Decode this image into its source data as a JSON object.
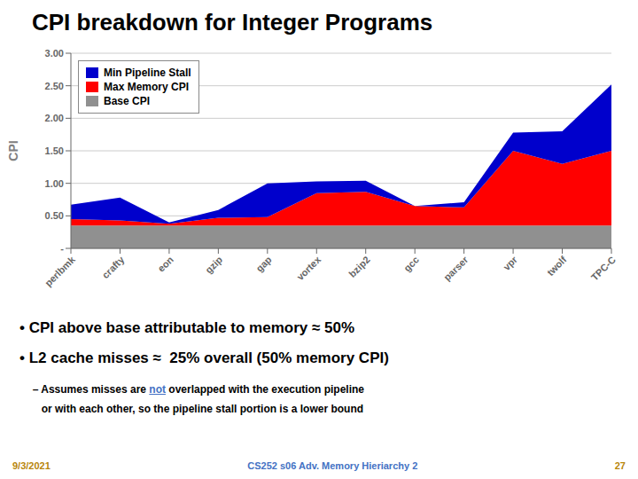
{
  "chart_data": {
    "type": "area",
    "stacked": true,
    "title": "CPI breakdown for Integer Programs",
    "ylabel": "CPI",
    "categories": [
      "perlbmk",
      "crafty",
      "eon",
      "gzip",
      "gap",
      "vortex",
      "bzip2",
      "gcc",
      "parser",
      "vpr",
      "twolf",
      "TPC-C"
    ],
    "series": [
      {
        "name": "Base CPI",
        "color": "#909090",
        "values": [
          0.35,
          0.35,
          0.35,
          0.35,
          0.35,
          0.35,
          0.35,
          0.35,
          0.35,
          0.35,
          0.35,
          0.35
        ]
      },
      {
        "name": "Max Memory CPI",
        "color": "#FF0000",
        "values": [
          0.1,
          0.08,
          0.03,
          0.12,
          0.13,
          0.5,
          0.52,
          0.3,
          0.28,
          1.15,
          0.95,
          1.15
        ]
      },
      {
        "name": "Min Pipeline Stall",
        "color": "#0000CC",
        "values": [
          0.22,
          0.35,
          0.02,
          0.12,
          0.52,
          0.18,
          0.17,
          0.0,
          0.08,
          0.28,
          0.5,
          1.02
        ]
      }
    ],
    "ylim": [
      0,
      3.0
    ],
    "yticks": [
      {
        "value": 0.0,
        "label": "-"
      },
      {
        "value": 0.5,
        "label": "0.50"
      },
      {
        "value": 1.0,
        "label": "1.00"
      },
      {
        "value": 1.5,
        "label": "1.50"
      },
      {
        "value": 2.0,
        "label": "2.00"
      },
      {
        "value": 2.5,
        "label": "2.50"
      },
      {
        "value": 3.0,
        "label": "3.00"
      }
    ],
    "grid": true,
    "legend": "upper left",
    "annotations": [
      {
        "text": "• CPI above base attributable to memory ≈ 50%"
      },
      {
        "text": "• L2 cache misses ≈  25% overall (50% memory CPI)"
      },
      {
        "parts": [
          {
            "text": "  – Assumes misses are "
          },
          {
            "text": "not",
            "color": "#4472C4"
          },
          {
            "text": " overlapped with the execution pipeline"
          }
        ]
      },
      {
        "text": "     or with each other, so the pipeline stall portion is a lower bound"
      },
      {
        "text": "9/3/2021",
        "color": "#B8860B"
      },
      {
        "text": "CS252 s06 Adv. Memory Hieriarchy 2",
        "color": "#4472C4"
      },
      {
        "text": "27",
        "color": "#B8860B"
      }
    ]
  }
}
